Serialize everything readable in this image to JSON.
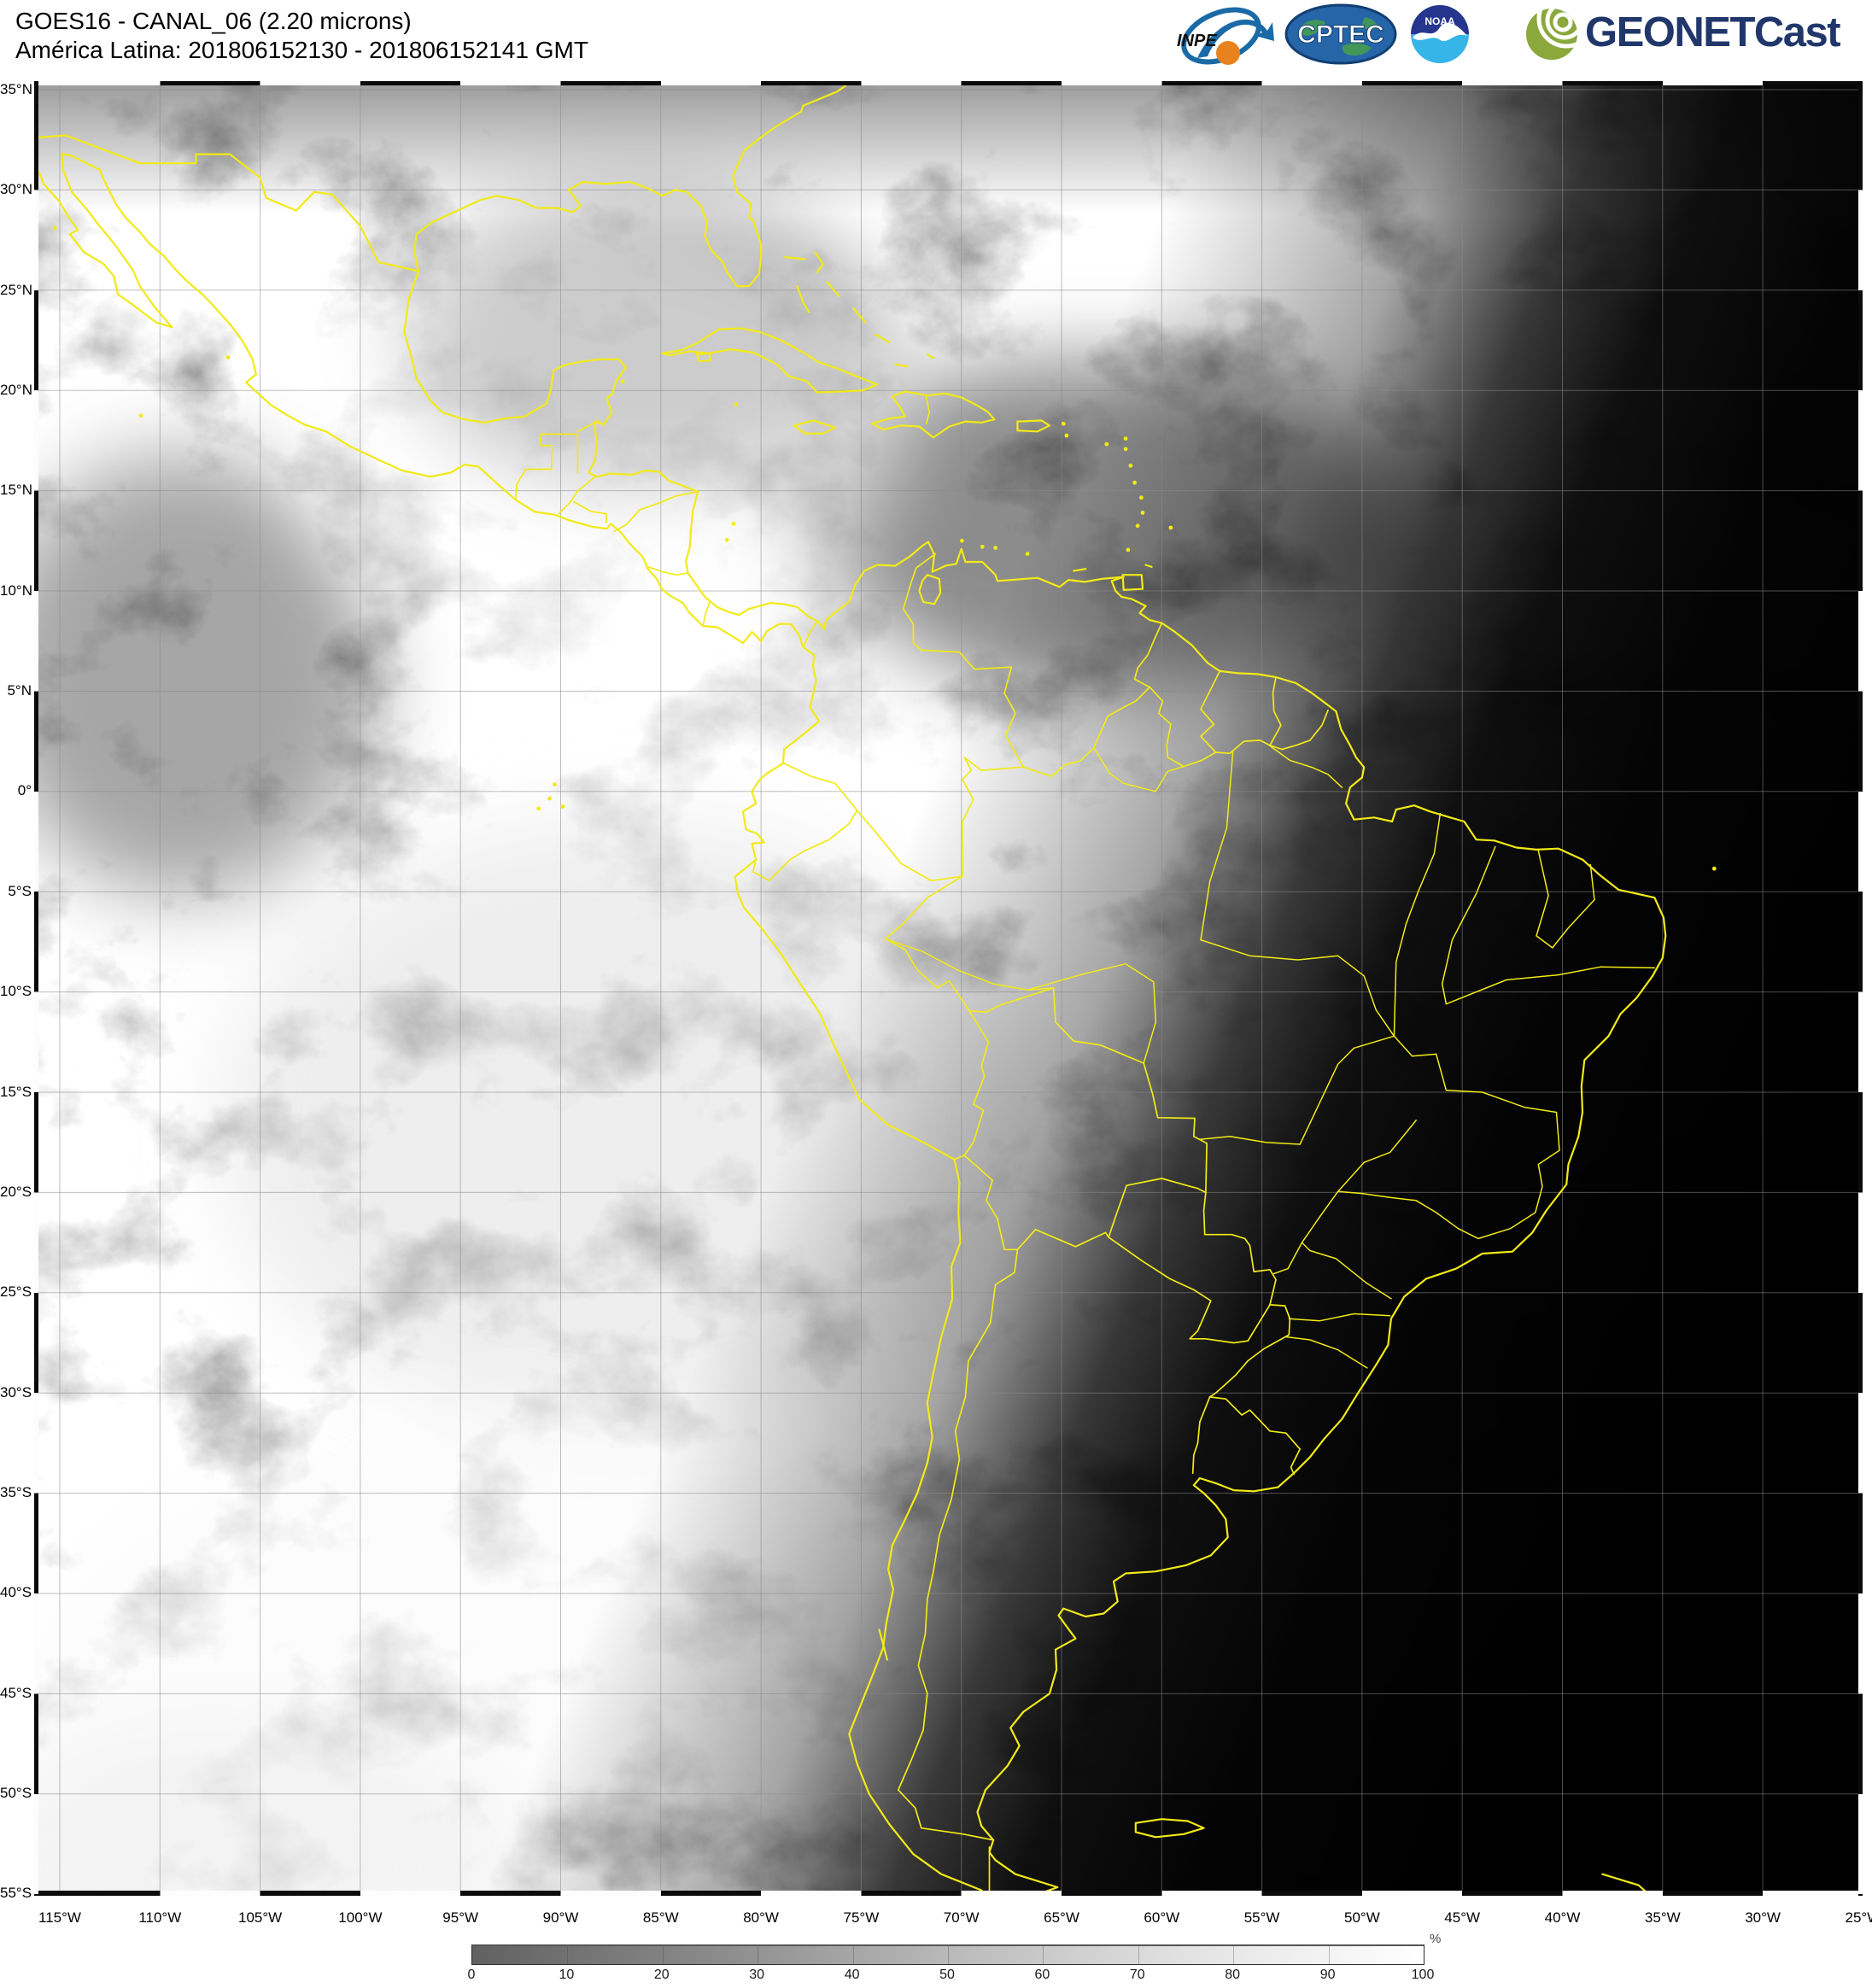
{
  "header": {
    "title_line1": "GOES16 - CANAL_06 (2.20 microns)",
    "title_line2": "América Latina: 201806152130 - 201806152141 GMT",
    "logos": {
      "inpe": "INPE",
      "cptec": "CPTEC",
      "noaa": "NOAA",
      "geonetcast": "GEONETCast"
    }
  },
  "map": {
    "lat_labels": [
      "35°N",
      "30°N",
      "25°N",
      "20°N",
      "15°N",
      "10°N",
      "5°N",
      "0°",
      "5°S",
      "10°S",
      "15°S",
      "20°S",
      "25°S",
      "30°S",
      "35°S",
      "40°S",
      "45°S",
      "50°S",
      "55°S"
    ],
    "lon_labels": [
      "115°W",
      "110°W",
      "105°W",
      "100°W",
      "95°W",
      "90°W",
      "85°W",
      "80°W",
      "75°W",
      "70°W",
      "65°W",
      "60°W",
      "55°W",
      "50°W",
      "45°W",
      "40°W",
      "35°W",
      "30°W",
      "25°W"
    ],
    "colors": {
      "border_yellow": "#f2ea16",
      "grid_gray": "#8a8a8a",
      "night_black": "#000000"
    }
  },
  "colorbar": {
    "tick_labels": [
      "0",
      "10",
      "20",
      "30",
      "40",
      "50",
      "60",
      "70",
      "80",
      "90",
      "100"
    ],
    "unit": "%",
    "start_color": "#616161",
    "end_color": "#ffffff"
  }
}
